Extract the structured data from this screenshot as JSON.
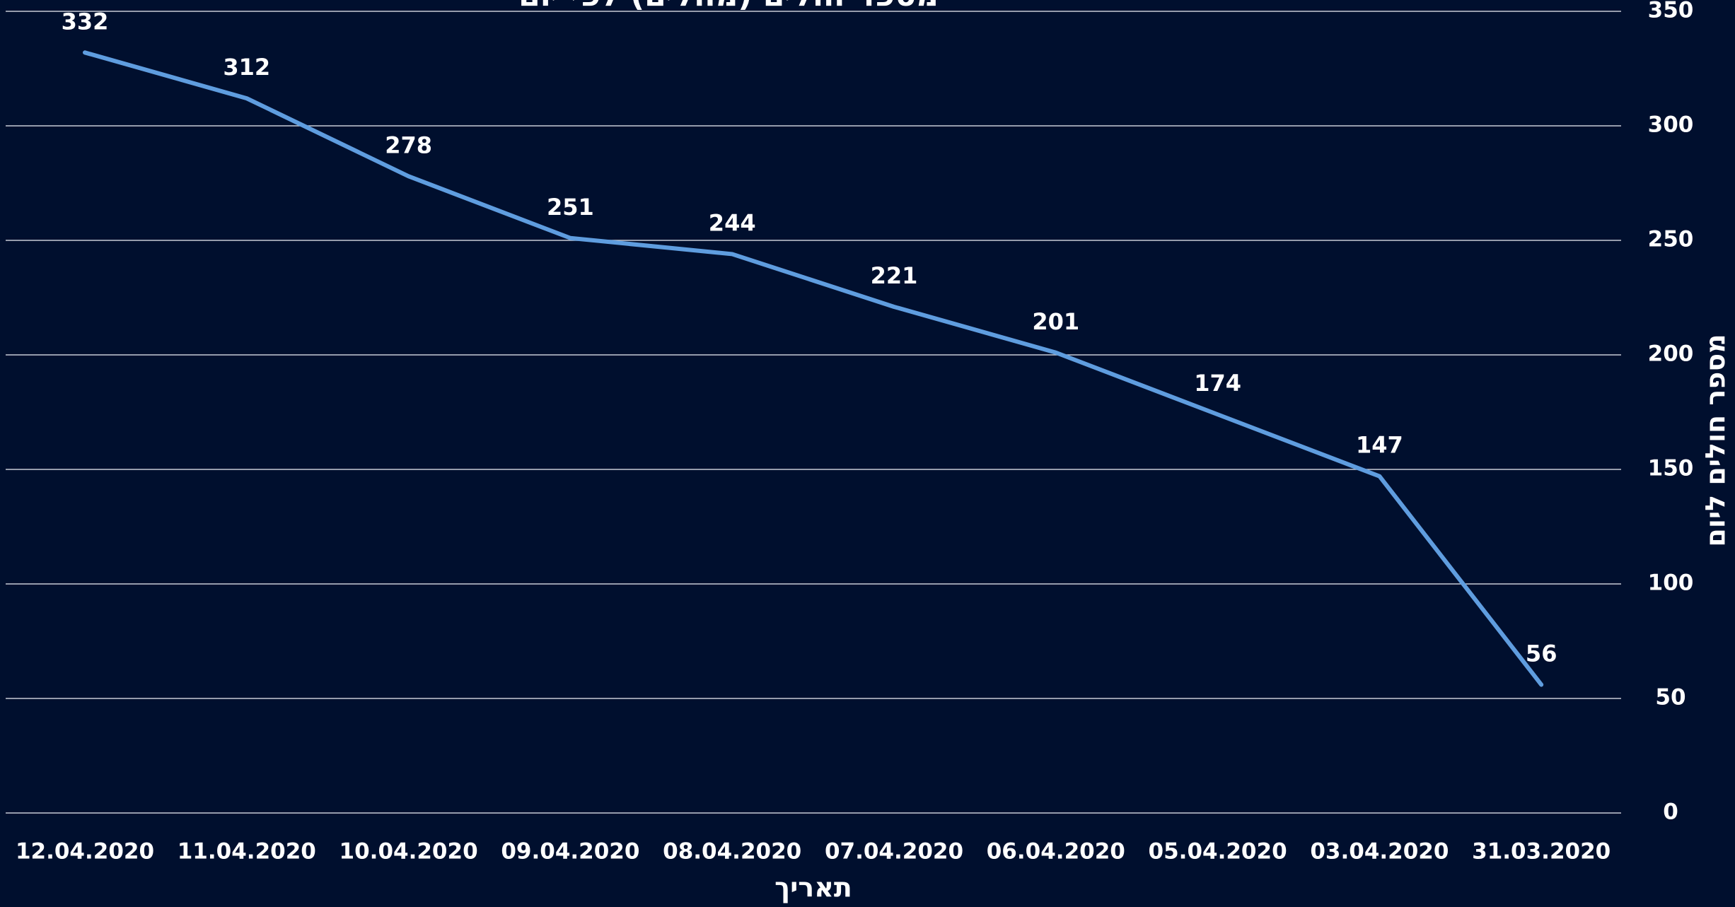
{
  "chart_data": {
    "type": "line",
    "title": "מספר חולים (מחלים) לפי יום",
    "x_label": "תאריך",
    "y_label": "מספר חולים ליום",
    "categories": [
      "12.04.2020",
      "11.04.2020",
      "10.04.2020",
      "09.04.2020",
      "08.04.2020",
      "07.04.2020",
      "06.04.2020",
      "05.04.2020",
      "03.04.2020",
      "31.03.2020"
    ],
    "series": [
      {
        "name": "מספר חולים ליום",
        "color": "#5f9ddf",
        "values": [
          332,
          312,
          278,
          251,
          244,
          221,
          201,
          174,
          147,
          56
        ]
      }
    ],
    "ylim": [
      0,
      350
    ],
    "yticks": [
      0,
      50,
      100,
      150,
      200,
      250,
      300,
      350
    ],
    "grid": true,
    "y_axis_side": "right"
  }
}
